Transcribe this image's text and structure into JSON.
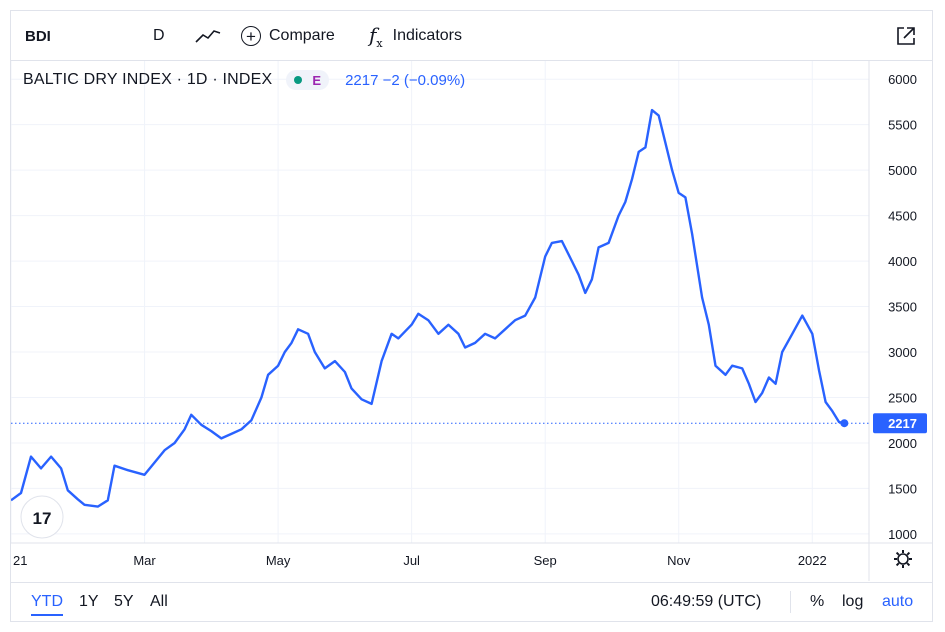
{
  "toolbar": {
    "symbol": "BDI",
    "interval": "D",
    "style_icon": "line-chart-icon",
    "compare_label": "Compare",
    "indicators_label": "Indicators",
    "fx_glyph": "f",
    "fx_sub": "x",
    "expand_icon": "expand-icon"
  },
  "legend": {
    "title": "BALTIC DRY INDEX · 1D · INDEX",
    "badge_letter": "E",
    "value_text": "2217 −2 (−0.09%)"
  },
  "bottom": {
    "ranges": [
      "YTD",
      "1Y",
      "5Y",
      "All"
    ],
    "active_range": "YTD",
    "clock": "06:49:59 (UTC)",
    "percent_label": "%",
    "log_label": "log",
    "auto_label": "auto"
  },
  "chart_data": {
    "type": "line",
    "title": "",
    "xlabel": "",
    "ylabel": "",
    "x_range": [
      0,
      12.4
    ],
    "ylim": [
      900,
      6200
    ],
    "y_ticks": [
      1000,
      1500,
      2000,
      2500,
      3000,
      3500,
      4000,
      4500,
      5000,
      5500,
      6000
    ],
    "x_ticks": [
      {
        "label": "21",
        "value": 0
      },
      {
        "label": "Mar",
        "value": 2
      },
      {
        "label": "May",
        "value": 4
      },
      {
        "label": "Jul",
        "value": 6
      },
      {
        "label": "Sep",
        "value": 8
      },
      {
        "label": "Nov",
        "value": 10
      },
      {
        "label": "2022",
        "value": 12
      }
    ],
    "last_value": 2217,
    "last_value_label": "2217",
    "line_color": "#2962ff",
    "grid": true,
    "series": [
      {
        "values": [
          [
            0.0,
            1370
          ],
          [
            0.15,
            1450
          ],
          [
            0.3,
            1850
          ],
          [
            0.45,
            1720
          ],
          [
            0.6,
            1850
          ],
          [
            0.75,
            1720
          ],
          [
            0.85,
            1480
          ],
          [
            1.0,
            1380
          ],
          [
            1.1,
            1320
          ],
          [
            1.3,
            1300
          ],
          [
            1.45,
            1370
          ],
          [
            1.55,
            1750
          ],
          [
            1.75,
            1700
          ],
          [
            2.0,
            1650
          ],
          [
            2.1,
            1740
          ],
          [
            2.3,
            1920
          ],
          [
            2.45,
            2000
          ],
          [
            2.6,
            2150
          ],
          [
            2.7,
            2310
          ],
          [
            2.85,
            2200
          ],
          [
            3.0,
            2130
          ],
          [
            3.15,
            2050
          ],
          [
            3.3,
            2100
          ],
          [
            3.45,
            2150
          ],
          [
            3.6,
            2250
          ],
          [
            3.75,
            2500
          ],
          [
            3.85,
            2750
          ],
          [
            4.0,
            2850
          ],
          [
            4.1,
            3000
          ],
          [
            4.2,
            3100
          ],
          [
            4.3,
            3250
          ],
          [
            4.45,
            3200
          ],
          [
            4.55,
            3000
          ],
          [
            4.7,
            2820
          ],
          [
            4.85,
            2900
          ],
          [
            5.0,
            2780
          ],
          [
            5.1,
            2600
          ],
          [
            5.25,
            2480
          ],
          [
            5.4,
            2430
          ],
          [
            5.55,
            2900
          ],
          [
            5.7,
            3200
          ],
          [
            5.8,
            3150
          ],
          [
            6.0,
            3300
          ],
          [
            6.1,
            3420
          ],
          [
            6.25,
            3350
          ],
          [
            6.4,
            3200
          ],
          [
            6.55,
            3300
          ],
          [
            6.7,
            3200
          ],
          [
            6.8,
            3050
          ],
          [
            6.95,
            3100
          ],
          [
            7.1,
            3200
          ],
          [
            7.25,
            3150
          ],
          [
            7.4,
            3250
          ],
          [
            7.55,
            3350
          ],
          [
            7.7,
            3400
          ],
          [
            7.85,
            3600
          ],
          [
            8.0,
            4050
          ],
          [
            8.1,
            4200
          ],
          [
            8.25,
            4220
          ],
          [
            8.4,
            4000
          ],
          [
            8.5,
            3850
          ],
          [
            8.6,
            3650
          ],
          [
            8.7,
            3800
          ],
          [
            8.8,
            4150
          ],
          [
            8.95,
            4200
          ],
          [
            9.1,
            4500
          ],
          [
            9.2,
            4650
          ],
          [
            9.3,
            4900
          ],
          [
            9.4,
            5200
          ],
          [
            9.5,
            5250
          ],
          [
            9.6,
            5660
          ],
          [
            9.7,
            5600
          ],
          [
            9.8,
            5300
          ],
          [
            9.9,
            5000
          ],
          [
            10.0,
            4750
          ],
          [
            10.1,
            4700
          ],
          [
            10.2,
            4300
          ],
          [
            10.35,
            3600
          ],
          [
            10.45,
            3300
          ],
          [
            10.55,
            2850
          ],
          [
            10.7,
            2750
          ],
          [
            10.8,
            2850
          ],
          [
            10.95,
            2820
          ],
          [
            11.05,
            2650
          ],
          [
            11.15,
            2450
          ],
          [
            11.25,
            2550
          ],
          [
            11.35,
            2720
          ],
          [
            11.45,
            2650
          ],
          [
            11.55,
            3000
          ],
          [
            11.7,
            3200
          ],
          [
            11.85,
            3400
          ],
          [
            12.0,
            3200
          ],
          [
            12.1,
            2800
          ],
          [
            12.2,
            2450
          ],
          [
            12.3,
            2350
          ],
          [
            12.4,
            2230
          ],
          [
            12.48,
            2217
          ]
        ]
      }
    ]
  }
}
